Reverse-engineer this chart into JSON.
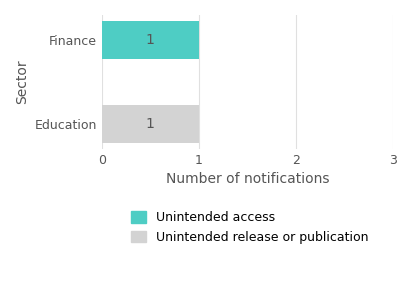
{
  "categories": [
    "Finance",
    "Education"
  ],
  "unintended_access": [
    1,
    0
  ],
  "unintended_release": [
    0,
    1
  ],
  "bar_color_access": "#4ecdc4",
  "bar_color_release": "#d3d3d3",
  "xlabel": "Number of notifications",
  "ylabel": "Sector",
  "xlim": [
    0,
    3
  ],
  "xticks": [
    0,
    1,
    2,
    3
  ],
  "legend_access": "Unintended access",
  "legend_release": "Unintended release or publication",
  "bar_height": 0.45,
  "label_fontsize": 10,
  "tick_fontsize": 9,
  "axis_label_fontsize": 10,
  "background_color": "#ffffff",
  "grid_color": "#e0e0e0"
}
